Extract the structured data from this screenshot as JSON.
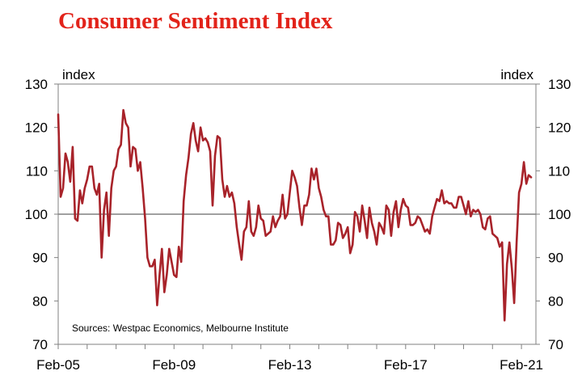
{
  "title": "Consumer Sentiment Index",
  "chart_data": {
    "type": "line",
    "title": "Consumer Sentiment Index",
    "y_unit_left": "index",
    "y_unit_right": "index",
    "ylim": [
      70,
      130
    ],
    "yticks": [
      70,
      80,
      90,
      100,
      110,
      120,
      130
    ],
    "xlim": [
      "2005-02",
      "2021-08"
    ],
    "xtick_labels": [
      "Feb-05",
      "Feb-09",
      "Feb-13",
      "Feb-17",
      "Feb-21"
    ],
    "xtick_dates": [
      "2005-02",
      "2009-02",
      "2013-02",
      "2017-02",
      "2021-02"
    ],
    "reference_line": 100,
    "source": "Sources: Westpac Economics, Melbourne Institute",
    "colors": {
      "line": "#a8232a",
      "title": "#e2231a",
      "axis": "#808080"
    },
    "series": [
      {
        "x": [
          "2005-02",
          "2005-03",
          "2005-04",
          "2005-05",
          "2005-06",
          "2005-07",
          "2005-08",
          "2005-09",
          "2005-10",
          "2005-11",
          "2005-12",
          "2006-01",
          "2006-02",
          "2006-03",
          "2006-04",
          "2006-05",
          "2006-06",
          "2006-07",
          "2006-08",
          "2006-09",
          "2006-10",
          "2006-11",
          "2006-12",
          "2007-01",
          "2007-02",
          "2007-03",
          "2007-04",
          "2007-05",
          "2007-06",
          "2007-07",
          "2007-08",
          "2007-09",
          "2007-10",
          "2007-11",
          "2007-12",
          "2008-01",
          "2008-02",
          "2008-03",
          "2008-04",
          "2008-05",
          "2008-06",
          "2008-07",
          "2008-08",
          "2008-09",
          "2008-10",
          "2008-11",
          "2008-12",
          "2009-01",
          "2009-02",
          "2009-03",
          "2009-04",
          "2009-05",
          "2009-06",
          "2009-07",
          "2009-08",
          "2009-09",
          "2009-10",
          "2009-11",
          "2009-12",
          "2010-01",
          "2010-02",
          "2010-03",
          "2010-04",
          "2010-05",
          "2010-06",
          "2010-07",
          "2010-08",
          "2010-09",
          "2010-10",
          "2010-11",
          "2010-12",
          "2011-01",
          "2011-02",
          "2011-03",
          "2011-04",
          "2011-05",
          "2011-06",
          "2011-07",
          "2011-08",
          "2011-09",
          "2011-10",
          "2011-11",
          "2011-12",
          "2012-01",
          "2012-02",
          "2012-03",
          "2012-04",
          "2012-05",
          "2012-06",
          "2012-07",
          "2012-08",
          "2012-09",
          "2012-10",
          "2012-11",
          "2012-12",
          "2013-01",
          "2013-02",
          "2013-03",
          "2013-04",
          "2013-05",
          "2013-06",
          "2013-07",
          "2013-08",
          "2013-09",
          "2013-10",
          "2013-11",
          "2013-12",
          "2014-01",
          "2014-02",
          "2014-03",
          "2014-04",
          "2014-05",
          "2014-06",
          "2014-07",
          "2014-08",
          "2014-09",
          "2014-10",
          "2014-11",
          "2014-12",
          "2015-01",
          "2015-02",
          "2015-03",
          "2015-04",
          "2015-05",
          "2015-06",
          "2015-07",
          "2015-08",
          "2015-09",
          "2015-10",
          "2015-11",
          "2015-12",
          "2016-01",
          "2016-02",
          "2016-03",
          "2016-04",
          "2016-05",
          "2016-06",
          "2016-07",
          "2016-08",
          "2016-09",
          "2016-10",
          "2016-11",
          "2016-12",
          "2017-01",
          "2017-02",
          "2017-03",
          "2017-04",
          "2017-05",
          "2017-06",
          "2017-07",
          "2017-08",
          "2017-09",
          "2017-10",
          "2017-11",
          "2017-12",
          "2018-01",
          "2018-02",
          "2018-03",
          "2018-04",
          "2018-05",
          "2018-06",
          "2018-07",
          "2018-08",
          "2018-09",
          "2018-10",
          "2018-11",
          "2018-12",
          "2019-01",
          "2019-02",
          "2019-03",
          "2019-04",
          "2019-05",
          "2019-06",
          "2019-07",
          "2019-08",
          "2019-09",
          "2019-10",
          "2019-11",
          "2019-12",
          "2020-01",
          "2020-02",
          "2020-03",
          "2020-04",
          "2020-05",
          "2020-06",
          "2020-07",
          "2020-08",
          "2020-09",
          "2020-10",
          "2020-11",
          "2020-12",
          "2021-01",
          "2021-02",
          "2021-03",
          "2021-04",
          "2021-05",
          "2021-06"
        ],
        "values": [
          123,
          104,
          106,
          114,
          112,
          107.5,
          115.5,
          99,
          98.5,
          105.5,
          102.5,
          106,
          108,
          111,
          111,
          106,
          104.5,
          107,
          90,
          101,
          105,
          95,
          106,
          110,
          111,
          115,
          116,
          124,
          121,
          120,
          111,
          115.5,
          115,
          110,
          112,
          106,
          99,
          90,
          88,
          88,
          89.5,
          79,
          86,
          92,
          82,
          86,
          92,
          89,
          86,
          85.5,
          92.5,
          89,
          103,
          109,
          113,
          118.5,
          121,
          117,
          114.5,
          120,
          117,
          117.5,
          116.5,
          114.5,
          102,
          113.5,
          118,
          117.5,
          108,
          104,
          106.5,
          104,
          105,
          102.5,
          97,
          93,
          89.5,
          96,
          97,
          103,
          96,
          95,
          97,
          102,
          99,
          98.5,
          95,
          95.5,
          96,
          99.5,
          97,
          98.5,
          99.5,
          104.5,
          99,
          100,
          105,
          110,
          108.5,
          106.5,
          101.5,
          97.5,
          102,
          102,
          104.5,
          110.5,
          108,
          110.5,
          106,
          104,
          101,
          99.5,
          99.5,
          93,
          93,
          94,
          98,
          97.5,
          94.5,
          95.5,
          97,
          91,
          93,
          100.5,
          99.5,
          96,
          102,
          98.5,
          94.5,
          101.5,
          98,
          96,
          93,
          98,
          97,
          95.5,
          102,
          101,
          95,
          100.5,
          103,
          97,
          101,
          103.5,
          102,
          101.5,
          97.5,
          97.5,
          98,
          99.5,
          99,
          97.5,
          96,
          96.5,
          95.5,
          99.5,
          101.5,
          103.5,
          103,
          105.5,
          102.5,
          103,
          102.5,
          102.5,
          101.5,
          101.5,
          104,
          104,
          102,
          100,
          103,
          99.5,
          101,
          100.5,
          101,
          100,
          97,
          96.5,
          99,
          99.5,
          95.5,
          95,
          94.5,
          92.5,
          93.5,
          75.5,
          88.5,
          93.5,
          87.5,
          79.5,
          93.5,
          105,
          107,
          112,
          107,
          109,
          108.5
        ]
      }
    ]
  }
}
